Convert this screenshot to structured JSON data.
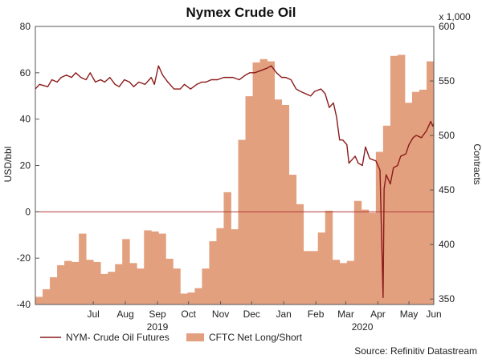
{
  "chart_data": {
    "type": "line",
    "title": "Nymex Crude Oil",
    "x_start": "2019-05-20",
    "x_end": "2020-06-08",
    "x_ticks": [
      {
        "date": "2019-07-15",
        "label": "Jul"
      },
      {
        "date": "2019-08-15",
        "label": "Aug"
      },
      {
        "date": "2019-09-15",
        "label": "Sep"
      },
      {
        "date": "2019-10-15",
        "label": "Oct"
      },
      {
        "date": "2019-11-15",
        "label": "Nov"
      },
      {
        "date": "2019-12-15",
        "label": "Dec"
      },
      {
        "date": "2020-01-15",
        "label": "Jan"
      },
      {
        "date": "2020-02-15",
        "label": "Feb"
      },
      {
        "date": "2020-03-15",
        "label": "Mar"
      },
      {
        "date": "2020-04-15",
        "label": "Apr"
      },
      {
        "date": "2020-05-15",
        "label": "May"
      },
      {
        "date": "2020-06-08",
        "label": "Jun"
      }
    ],
    "year_labels": [
      {
        "date": "2019-09-15",
        "label": "2019"
      },
      {
        "date": "2020-03-31",
        "label": "2020"
      }
    ],
    "left_axis": {
      "label": "USD/bbl",
      "min": -40,
      "max": 80,
      "ticks": [
        -40,
        -20,
        0,
        20,
        40,
        60,
        80
      ]
    },
    "right_axis": {
      "label": "Contracts",
      "unit_label": "x 1,000",
      "min": 345,
      "max": 600,
      "ticks": [
        350,
        400,
        450,
        500,
        550,
        600
      ]
    },
    "zero_line": 0,
    "series": [
      {
        "name": "CFTC Net Long/Short",
        "axis": "right",
        "kind": "step-area",
        "color": "#e3a07f",
        "points": [
          [
            "2019-05-20",
            352
          ],
          [
            "2019-05-27",
            359
          ],
          [
            "2019-06-03",
            370
          ],
          [
            "2019-06-10",
            381
          ],
          [
            "2019-06-17",
            385
          ],
          [
            "2019-06-24",
            384
          ],
          [
            "2019-07-01",
            410
          ],
          [
            "2019-07-08",
            386
          ],
          [
            "2019-07-15",
            384
          ],
          [
            "2019-07-22",
            373
          ],
          [
            "2019-07-29",
            375
          ],
          [
            "2019-08-05",
            382
          ],
          [
            "2019-08-12",
            405
          ],
          [
            "2019-08-19",
            383
          ],
          [
            "2019-08-26",
            378
          ],
          [
            "2019-09-02",
            413
          ],
          [
            "2019-09-09",
            412
          ],
          [
            "2019-09-16",
            410
          ],
          [
            "2019-09-23",
            387
          ],
          [
            "2019-09-30",
            378
          ],
          [
            "2019-10-07",
            355
          ],
          [
            "2019-10-14",
            356
          ],
          [
            "2019-10-21",
            360
          ],
          [
            "2019-10-28",
            378
          ],
          [
            "2019-11-04",
            403
          ],
          [
            "2019-11-11",
            415
          ],
          [
            "2019-11-18",
            448
          ],
          [
            "2019-11-25",
            414
          ],
          [
            "2019-12-02",
            496
          ],
          [
            "2019-12-09",
            536
          ],
          [
            "2019-12-16",
            567
          ],
          [
            "2019-12-23",
            570
          ],
          [
            "2019-12-30",
            568
          ],
          [
            "2020-01-06",
            533
          ],
          [
            "2020-01-13",
            528
          ],
          [
            "2020-01-20",
            464
          ],
          [
            "2020-01-27",
            437
          ],
          [
            "2020-02-03",
            394
          ],
          [
            "2020-02-10",
            394
          ],
          [
            "2020-02-17",
            411
          ],
          [
            "2020-02-24",
            431
          ],
          [
            "2020-03-02",
            386
          ],
          [
            "2020-03-09",
            383
          ],
          [
            "2020-03-16",
            385
          ],
          [
            "2020-03-23",
            440
          ],
          [
            "2020-03-30",
            432
          ],
          [
            "2020-04-06",
            429
          ],
          [
            "2020-04-13",
            485
          ],
          [
            "2020-04-20",
            509
          ],
          [
            "2020-04-27",
            573
          ],
          [
            "2020-05-04",
            574
          ],
          [
            "2020-05-11",
            530
          ],
          [
            "2020-05-18",
            540
          ],
          [
            "2020-05-25",
            542
          ],
          [
            "2020-06-01",
            568
          ]
        ]
      },
      {
        "name": "NYM- Crude Oil Futures",
        "axis": "left",
        "kind": "line",
        "color": "#8b1a1a",
        "points": [
          [
            "2019-05-20",
            53
          ],
          [
            "2019-05-24",
            55
          ],
          [
            "2019-06-01",
            54
          ],
          [
            "2019-06-05",
            57
          ],
          [
            "2019-06-10",
            56
          ],
          [
            "2019-06-14",
            58
          ],
          [
            "2019-06-19",
            59
          ],
          [
            "2019-06-24",
            58
          ],
          [
            "2019-06-28",
            60
          ],
          [
            "2019-07-03",
            58
          ],
          [
            "2019-07-08",
            57
          ],
          [
            "2019-07-12",
            60
          ],
          [
            "2019-07-17",
            56
          ],
          [
            "2019-07-22",
            57
          ],
          [
            "2019-07-26",
            56
          ],
          [
            "2019-07-31",
            58
          ],
          [
            "2019-08-05",
            55
          ],
          [
            "2019-08-09",
            54
          ],
          [
            "2019-08-14",
            57
          ],
          [
            "2019-08-19",
            56
          ],
          [
            "2019-08-23",
            54
          ],
          [
            "2019-08-28",
            56
          ],
          [
            "2019-09-03",
            55
          ],
          [
            "2019-09-09",
            58
          ],
          [
            "2019-09-12",
            55
          ],
          [
            "2019-09-16",
            63
          ],
          [
            "2019-09-20",
            59
          ],
          [
            "2019-09-25",
            56
          ],
          [
            "2019-10-01",
            53
          ],
          [
            "2019-10-07",
            53
          ],
          [
            "2019-10-11",
            55
          ],
          [
            "2019-10-17",
            53
          ],
          [
            "2019-10-23",
            55
          ],
          [
            "2019-10-28",
            56
          ],
          [
            "2019-11-01",
            56
          ],
          [
            "2019-11-06",
            57
          ],
          [
            "2019-11-12",
            57
          ],
          [
            "2019-11-18",
            58
          ],
          [
            "2019-11-22",
            58
          ],
          [
            "2019-11-27",
            58
          ],
          [
            "2019-12-03",
            57
          ],
          [
            "2019-12-09",
            59
          ],
          [
            "2019-12-13",
            60
          ],
          [
            "2019-12-18",
            60
          ],
          [
            "2019-12-24",
            61
          ],
          [
            "2019-12-30",
            62
          ],
          [
            "2020-01-03",
            63
          ],
          [
            "2020-01-08",
            60
          ],
          [
            "2020-01-13",
            58
          ],
          [
            "2020-01-17",
            58
          ],
          [
            "2020-01-22",
            57
          ],
          [
            "2020-01-27",
            53
          ],
          [
            "2020-01-31",
            52
          ],
          [
            "2020-02-05",
            51
          ],
          [
            "2020-02-10",
            50
          ],
          [
            "2020-02-14",
            52
          ],
          [
            "2020-02-20",
            53
          ],
          [
            "2020-02-24",
            51
          ],
          [
            "2020-02-28",
            45
          ],
          [
            "2020-03-03",
            47
          ],
          [
            "2020-03-06",
            41
          ],
          [
            "2020-03-09",
            31
          ],
          [
            "2020-03-12",
            31
          ],
          [
            "2020-03-16",
            29
          ],
          [
            "2020-03-18",
            21
          ],
          [
            "2020-03-20",
            22
          ],
          [
            "2020-03-24",
            24
          ],
          [
            "2020-03-27",
            21
          ],
          [
            "2020-03-31",
            20
          ],
          [
            "2020-04-03",
            28
          ],
          [
            "2020-04-07",
            23
          ],
          [
            "2020-04-13",
            22
          ],
          [
            "2020-04-16",
            19
          ],
          [
            "2020-04-17",
            18
          ],
          [
            "2020-04-20",
            -37
          ],
          [
            "2020-04-21",
            10
          ],
          [
            "2020-04-23",
            16
          ],
          [
            "2020-04-27",
            12
          ],
          [
            "2020-04-30",
            19
          ],
          [
            "2020-05-04",
            20
          ],
          [
            "2020-05-07",
            24
          ],
          [
            "2020-05-12",
            25
          ],
          [
            "2020-05-15",
            29
          ],
          [
            "2020-05-19",
            32
          ],
          [
            "2020-05-22",
            33
          ],
          [
            "2020-05-27",
            32
          ],
          [
            "2020-06-01",
            35
          ],
          [
            "2020-06-03",
            37
          ],
          [
            "2020-06-05",
            39
          ],
          [
            "2020-06-07",
            37
          ],
          [
            "2020-06-08",
            38
          ]
        ]
      }
    ],
    "legend_placement": "bottom",
    "source_note": "Source: Refinitiv Datastream",
    "grid": false
  }
}
